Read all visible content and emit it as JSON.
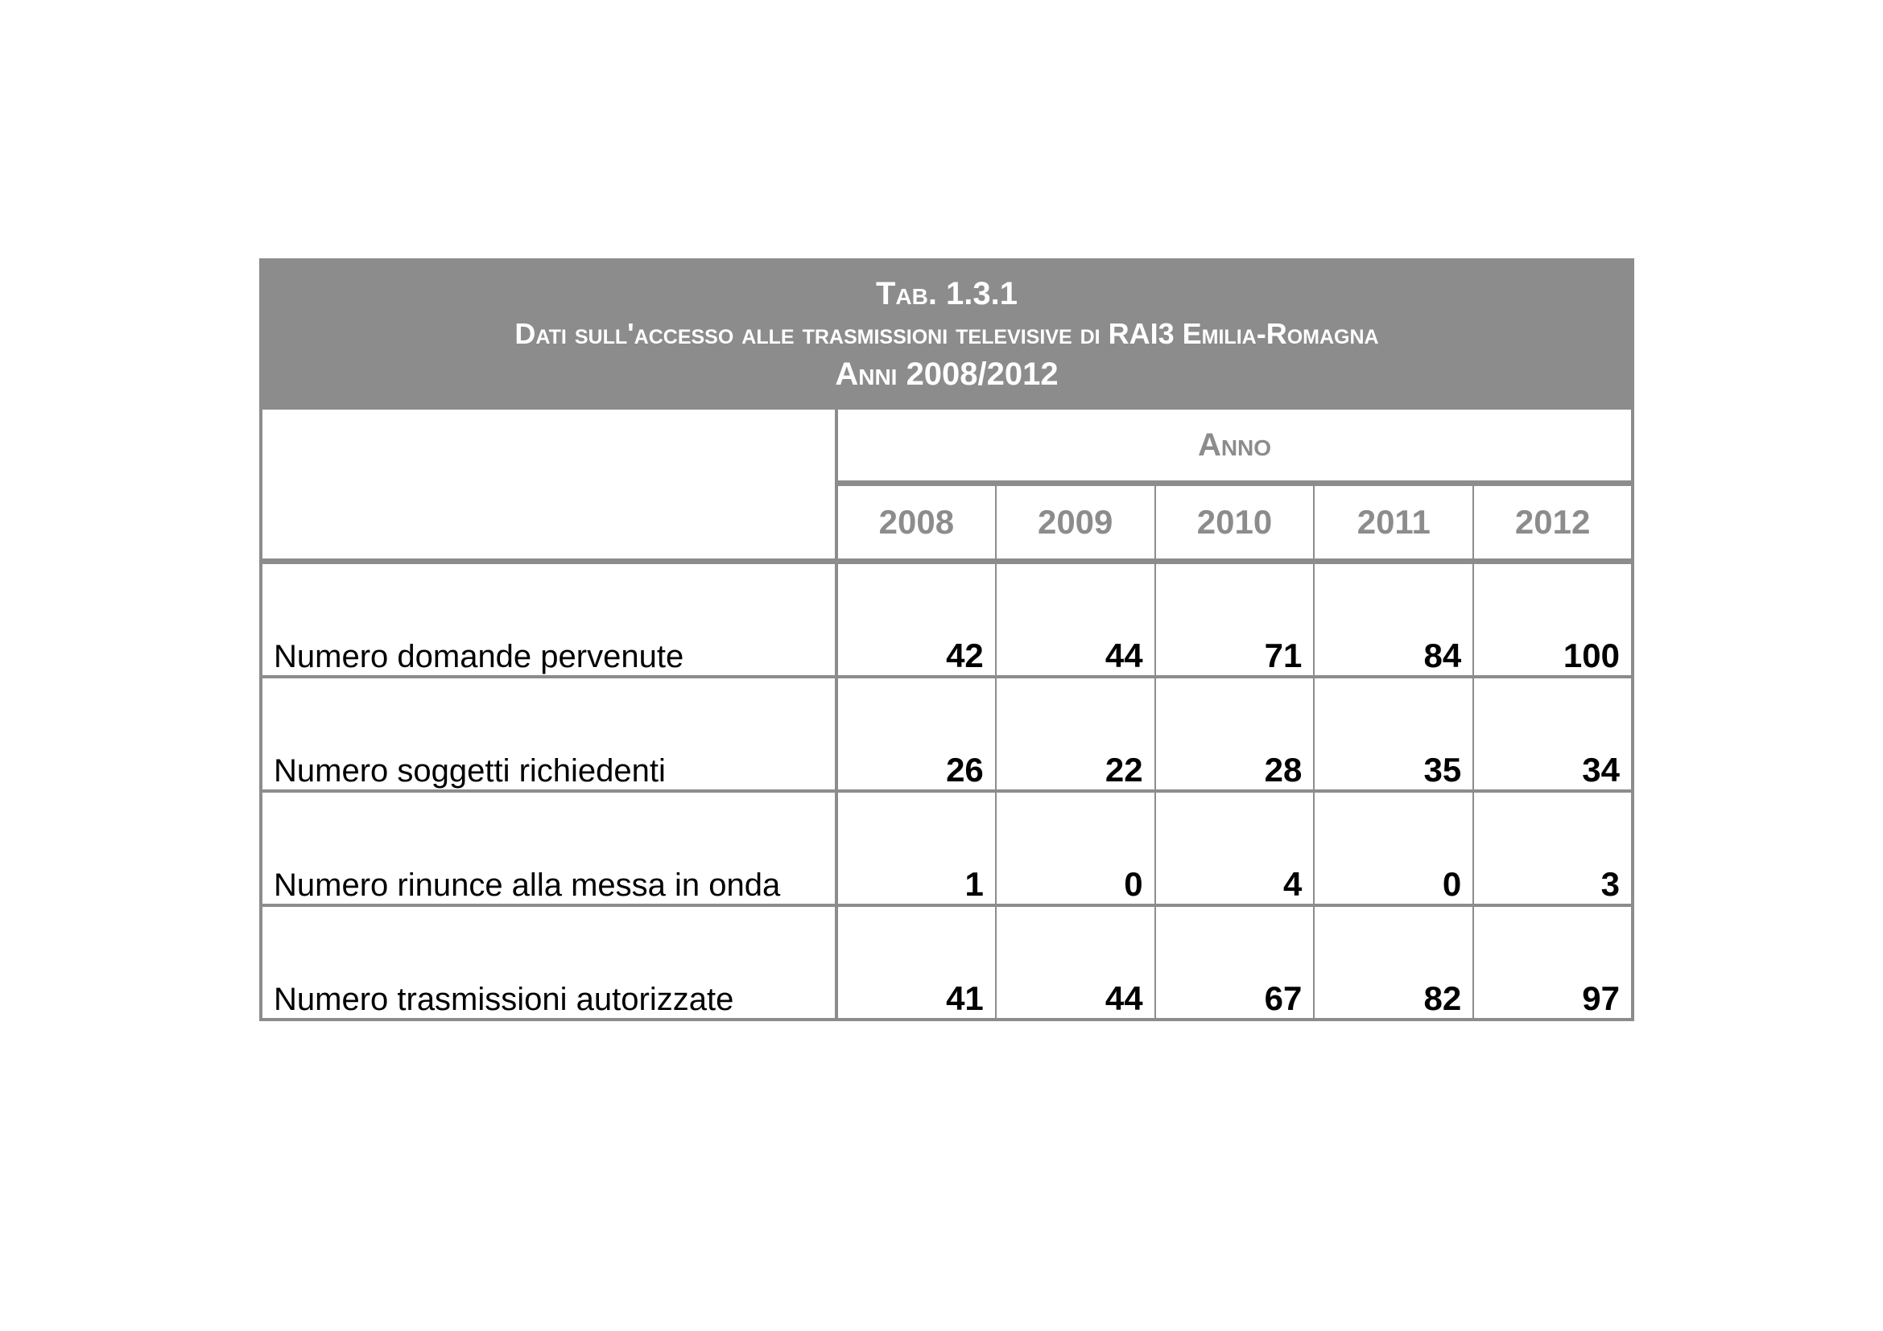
{
  "table": {
    "title_line1": "Tab. 1.3.1",
    "title_line2": "Dati sull'accesso alle trasmissioni televisive di RAI3 Emilia-Romagna",
    "title_line3": "Anni 2008/2012",
    "group_header": "Anno",
    "years": [
      "2008",
      "2009",
      "2010",
      "2011",
      "2012"
    ],
    "rows": [
      {
        "label": "Numero domande pervenute",
        "values": [
          "42",
          "44",
          "71",
          "84",
          "100"
        ]
      },
      {
        "label": "Numero soggetti richiedenti",
        "values": [
          "26",
          "22",
          "28",
          "35",
          "34"
        ]
      },
      {
        "label": "Numero rinunce alla messa in onda",
        "values": [
          "1",
          "0",
          "4",
          "0",
          "3"
        ]
      },
      {
        "label": "Numero trasmissioni autorizzate",
        "values": [
          "41",
          "44",
          "67",
          "82",
          "97"
        ]
      }
    ],
    "colors": {
      "header_bg": "#8c8c8c",
      "header_text": "#ffffff",
      "year_text": "#8c8c8c"
    }
  }
}
